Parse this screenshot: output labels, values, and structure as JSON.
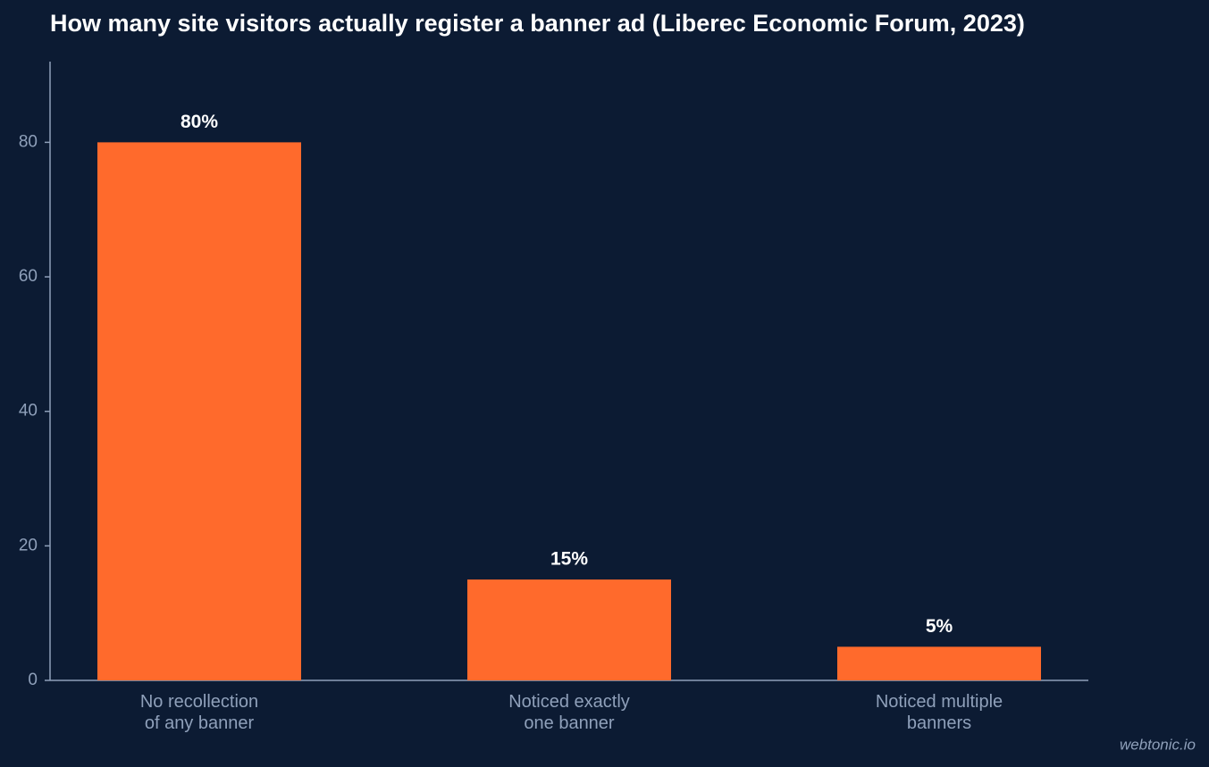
{
  "chart_data": {
    "type": "bar",
    "title": "How many site visitors actually register a banner ad (Liberec Economic Forum, 2023)",
    "categories": [
      "No recollection\nof any banner",
      "Noticed exactly\none banner",
      "Noticed multiple\nbanners"
    ],
    "values": [
      80,
      15,
      5
    ],
    "value_labels": [
      "80%",
      "15%",
      "5%"
    ],
    "color": "#ff6a2c",
    "ylim": [
      0,
      92
    ],
    "yticks": [
      0,
      20,
      40,
      60,
      80
    ],
    "grid": false
  },
  "watermark": "webtonic.io"
}
